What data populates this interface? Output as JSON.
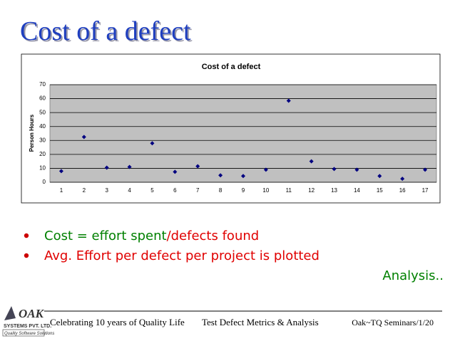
{
  "slide_title": "Cost of a defect",
  "chart_data": {
    "type": "scatter",
    "title": "Cost of a defect",
    "ylabel": "Person Hours",
    "categories": [
      "1",
      "2",
      "3",
      "4",
      "5",
      "6",
      "7",
      "8",
      "9",
      "10",
      "11",
      "12",
      "13",
      "14",
      "15",
      "16",
      "17"
    ],
    "values": [
      8,
      32.5,
      10.5,
      11,
      28,
      7.5,
      11.5,
      5,
      4.5,
      9,
      58.5,
      15,
      9.5,
      9,
      4.5,
      2.5,
      9
    ],
    "color": "#000080",
    "ylim": [
      0,
      70
    ],
    "yticks": [
      0,
      10,
      20,
      30,
      40,
      50,
      60,
      70
    ],
    "grid": true
  },
  "bullets": [
    [
      "Cost = effort spent",
      "/defects found"
    ],
    [
      "Avg. Effort per defect per project is plotted"
    ]
  ],
  "note": "Analysis..",
  "logo": {
    "name": "OAK",
    "company": "SYSTEMS PVT. LTD.",
    "tagline": "Quality Software Solutions"
  },
  "footer": [
    "Celebrating 10 years of Quality Life",
    "Test Defect Metrics & Analysis",
    "Oak~TQ Seminars/1/20"
  ]
}
